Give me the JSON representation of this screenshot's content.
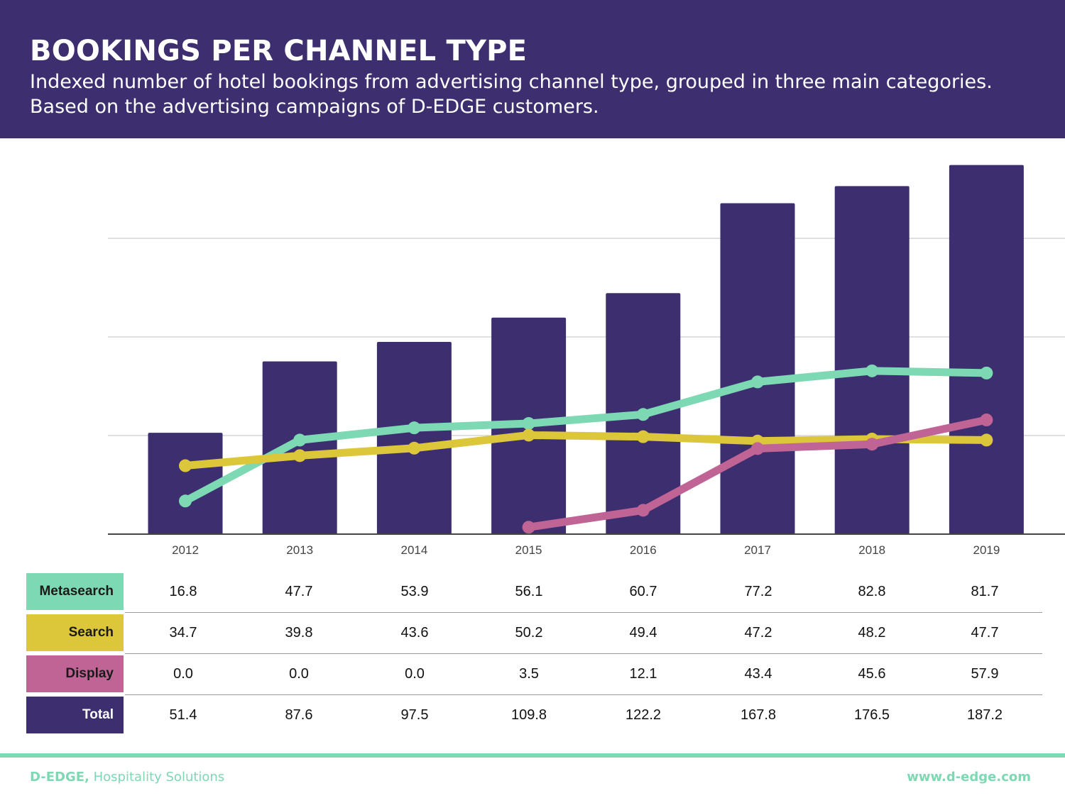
{
  "header": {
    "title": "BOOKINGS PER CHANNEL TYPE",
    "subtitle": "Indexed number of hotel bookings from advertising channel type, grouped in three main categories. Based on the advertising campaigns of D-EDGE customers."
  },
  "colors": {
    "header_bg": "#3d2e6f",
    "bars": "#3d2e6f",
    "metasearch": "#7dd8b4",
    "search": "#dcc63a",
    "display": "#c06496",
    "total": "#3d2e6f",
    "footer": "#7dd8b4"
  },
  "chart_data": {
    "type": "bar",
    "categories": [
      "2012",
      "2013",
      "2014",
      "2015",
      "2016",
      "2017",
      "2018",
      "2019"
    ],
    "ylim": [
      0,
      200
    ],
    "grid": true,
    "bar_series": "Total",
    "series": [
      {
        "name": "Metasearch",
        "type": "line",
        "values": [
          16.8,
          47.7,
          53.9,
          56.1,
          60.7,
          77.2,
          82.8,
          81.7
        ]
      },
      {
        "name": "Search",
        "type": "line",
        "values": [
          34.7,
          39.8,
          43.6,
          50.2,
          49.4,
          47.2,
          48.2,
          47.7
        ]
      },
      {
        "name": "Display",
        "type": "line",
        "values": [
          0.0,
          0.0,
          0.0,
          3.5,
          12.1,
          43.4,
          45.6,
          57.9
        ]
      },
      {
        "name": "Total",
        "type": "bar",
        "values": [
          51.4,
          87.6,
          97.5,
          109.8,
          122.2,
          167.8,
          176.5,
          187.2
        ]
      }
    ]
  },
  "table": {
    "rows": [
      {
        "label": "Metasearch",
        "values": [
          "16.8",
          "47.7",
          "53.9",
          "56.1",
          "60.7",
          "77.2",
          "82.8",
          "81.7"
        ]
      },
      {
        "label": "Search",
        "values": [
          "34.7",
          "39.8",
          "43.6",
          "50.2",
          "49.4",
          "47.2",
          "48.2",
          "47.7"
        ]
      },
      {
        "label": "Display",
        "values": [
          "0.0",
          "0.0",
          "0.0",
          "3.5",
          "12.1",
          "43.4",
          "45.6",
          "57.9"
        ]
      },
      {
        "label": "Total",
        "values": [
          "51.4",
          "87.6",
          "97.5",
          "109.8",
          "122.2",
          "167.8",
          "176.5",
          "187.2"
        ]
      }
    ]
  },
  "footer": {
    "brand": "D-EDGE,",
    "tagline": " Hospitality Solutions",
    "url": "www.d-edge.com"
  }
}
